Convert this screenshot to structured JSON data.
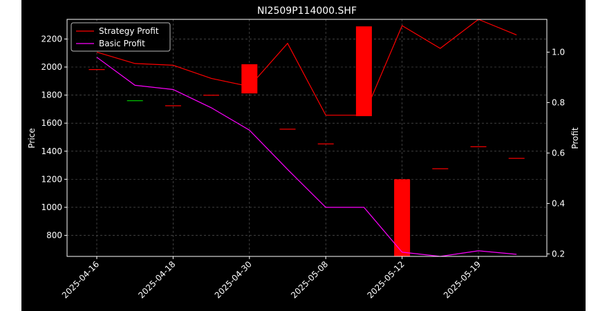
{
  "chart_data": {
    "type": "line+candlestick",
    "title": "NI2509P114000.SHF",
    "xlabel": "",
    "ylabel_left": "Price",
    "ylabel_right": "Profit",
    "ylim_left": [
      650,
      2340
    ],
    "ylim_right": [
      0.19,
      1.13
    ],
    "yticks_left": [
      800,
      1000,
      1200,
      1400,
      1600,
      1800,
      2000,
      2200
    ],
    "yticks_right": [
      0.2,
      0.4,
      0.6,
      0.8,
      1.0
    ],
    "xtick_labels": [
      "2025-04-16",
      "2025-04-18",
      "2025-04-30",
      "2025-05-08",
      "2025-05-12",
      "2025-05-19"
    ],
    "xtick_positions": [
      0,
      2,
      4,
      6,
      8,
      10
    ],
    "grid": true,
    "legend_position": "top-left",
    "colors": {
      "strategy": "#ff0000",
      "basic": "#ff00ff",
      "up": "#00cc00",
      "down": "#ff0000"
    },
    "series": [
      {
        "name": "Strategy Profit",
        "axis": "right",
        "color": "#ff0000",
        "x": [
          0,
          1,
          2,
          3,
          4,
          5,
          6,
          7,
          8,
          9,
          10,
          11
        ],
        "values": [
          1.0,
          0.955,
          0.948,
          0.896,
          0.864,
          1.035,
          0.75,
          0.75,
          1.105,
          1.015,
          1.13,
          1.068
        ]
      },
      {
        "name": "Basic Profit",
        "axis": "left",
        "color": "#ff00ff",
        "x": [
          0,
          1,
          2,
          3,
          4,
          5,
          6,
          7,
          8,
          9,
          10,
          11
        ],
        "values": [
          2070,
          1870,
          1840,
          1710,
          1550,
          1270,
          1000,
          1000,
          680,
          650,
          690,
          665
        ]
      }
    ],
    "candles": [
      {
        "x": 0,
        "open": 1980,
        "close": 1985,
        "dir": "down"
      },
      {
        "x": 1,
        "open": 1758,
        "close": 1763,
        "dir": "up"
      },
      {
        "x": 2,
        "open": 1722,
        "close": 1727,
        "dir": "down"
      },
      {
        "x": 3,
        "open": 1797,
        "close": 1802,
        "dir": "down"
      },
      {
        "x": 4,
        "open": 2020,
        "close": 1812,
        "dir": "down"
      },
      {
        "x": 5,
        "open": 1560,
        "close": 1555,
        "dir": "down"
      },
      {
        "x": 6,
        "open": 1455,
        "close": 1450,
        "dir": "down"
      },
      {
        "x": 7,
        "open": 2290,
        "close": 1650,
        "dir": "down"
      },
      {
        "x": 8,
        "open": 1200,
        "close": 650,
        "dir": "down"
      },
      {
        "x": 9,
        "open": 1278,
        "close": 1273,
        "dir": "down"
      },
      {
        "x": 10,
        "open": 1435,
        "close": 1430,
        "dir": "down"
      },
      {
        "x": 11,
        "open": 1352,
        "close": 1347,
        "dir": "down"
      }
    ]
  }
}
